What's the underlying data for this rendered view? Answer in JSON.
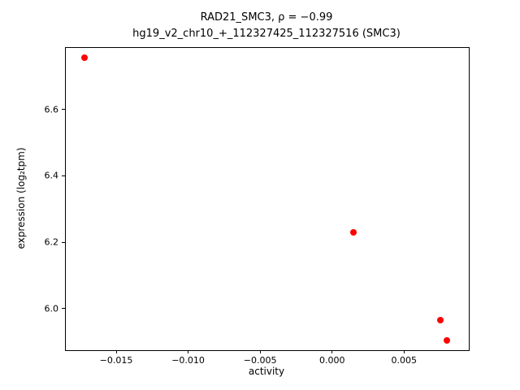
{
  "title": {
    "line1": "RAD21_SMC3, ρ = −0.99",
    "line2": "hg19_v2_chr10_+_112327425_112327516 (SMC3)"
  },
  "chart_data": {
    "type": "scatter",
    "title": "RAD21_SMC3, ρ = −0.99",
    "subtitle": "hg19_v2_chr10_+_112327425_112327516 (SMC3)",
    "xlabel": "activity",
    "ylabel": "expression (log₂tpm)",
    "xlim": [
      -0.0185,
      0.0095
    ],
    "ylim": [
      5.875,
      6.785
    ],
    "x_ticks": [
      -0.015,
      -0.01,
      -0.005,
      0.0,
      0.005
    ],
    "x_tick_labels": [
      "−0.015",
      "−0.010",
      "−0.005",
      "0.000",
      "0.005"
    ],
    "y_ticks": [
      6.0,
      6.2,
      6.4,
      6.6
    ],
    "y_tick_labels": [
      "6.0",
      "6.2",
      "6.4",
      "6.6"
    ],
    "legend": null,
    "grid": false,
    "marker_color": "#ff0000",
    "points": [
      {
        "x": -0.0172,
        "y": 6.755
      },
      {
        "x": 0.0015,
        "y": 6.23
      },
      {
        "x": 0.0075,
        "y": 5.965
      },
      {
        "x": 0.008,
        "y": 5.905
      }
    ]
  }
}
